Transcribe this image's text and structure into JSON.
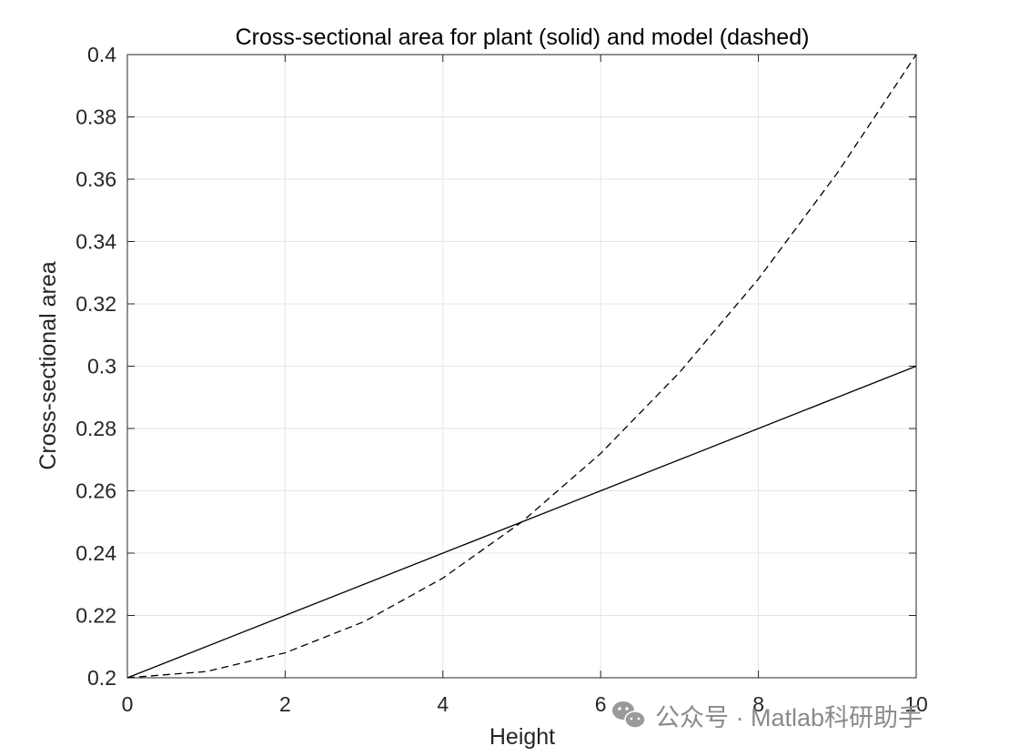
{
  "chart_data": {
    "type": "line",
    "title": "Cross-sectional area for plant (solid) and model (dashed)",
    "xlabel": "Height",
    "ylabel": "Cross-sectional area",
    "xlim": [
      0,
      10
    ],
    "ylim": [
      0.2,
      0.4
    ],
    "xticks": [
      0,
      2,
      4,
      6,
      8,
      10
    ],
    "xtick_labels": [
      "0",
      "2",
      "4",
      "6",
      "8",
      "10"
    ],
    "yticks": [
      0.2,
      0.22,
      0.24,
      0.26,
      0.28,
      0.3,
      0.32,
      0.34,
      0.36,
      0.38,
      0.4
    ],
    "ytick_labels": [
      "0.2",
      "0.22",
      "0.24",
      "0.26",
      "0.28",
      "0.3",
      "0.32",
      "0.34",
      "0.36",
      "0.38",
      "0.4"
    ],
    "grid": true,
    "x": [
      0,
      1,
      2,
      3,
      4,
      5,
      6,
      7,
      8,
      9,
      10
    ],
    "series": [
      {
        "style": "solid",
        "color": "#000000",
        "values": [
          0.2,
          0.21,
          0.22,
          0.23,
          0.24,
          0.25,
          0.26,
          0.27,
          0.28,
          0.29,
          0.3
        ]
      },
      {
        "style": "dashed",
        "color": "#000000",
        "values": [
          0.2,
          0.202,
          0.208,
          0.218,
          0.232,
          0.25,
          0.272,
          0.298,
          0.328,
          0.362,
          0.4
        ]
      }
    ]
  },
  "watermark": {
    "text": "公众号 · Matlab科研助手",
    "icon": "wechat-icon",
    "color": "#8a8a8a"
  }
}
